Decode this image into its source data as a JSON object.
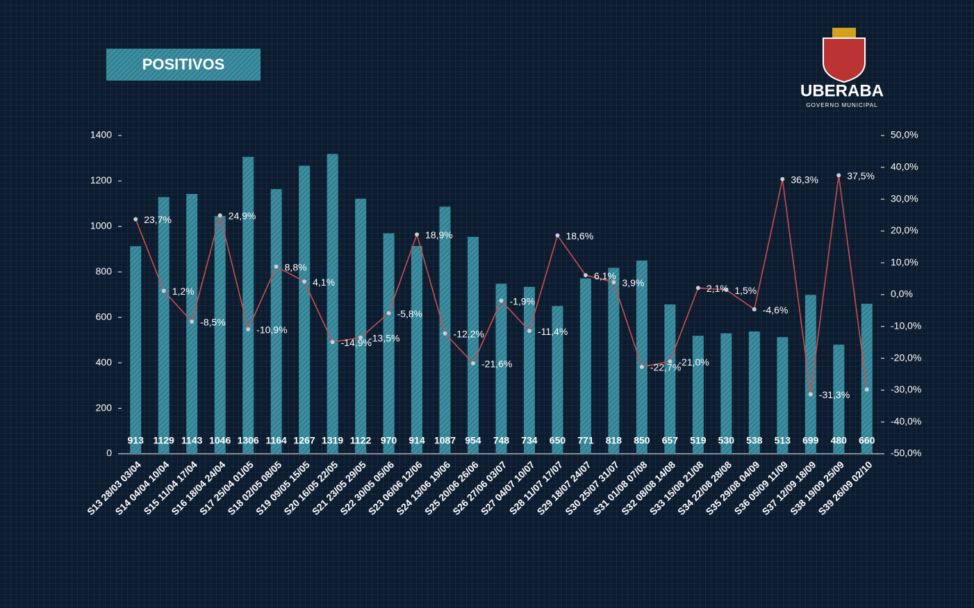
{
  "header": {
    "title": "POSITIVOS",
    "logo_name": "UBERABA",
    "logo_subtitle": "GOVERNO MUNICIPAL"
  },
  "chart_data": {
    "type": "bar_line",
    "categories": [
      "S13 28/03 03/04",
      "S14 04/04 10/04",
      "S15 11/04 17/04",
      "S16 18/04 24/04",
      "S17 25/04 01/05",
      "S18 02/05 08/05",
      "S19 09/05 15/05",
      "S20 16/05 22/05",
      "S21 23/05 29/05",
      "S22 30/05 05/06",
      "S23 06/06 12/06",
      "S24 13/06 19/06",
      "S25 20/06 26/06",
      "S26 27/06 03/07",
      "S27 04/07 10/07",
      "S28 11/07 17/07",
      "S29 18/07 24/07",
      "S30 25/07 31/07",
      "S31 01/08 07/08",
      "S32 08/08 14/08",
      "S33 15/08 21/08",
      "S34 22/08 28/08",
      "S35 29/08 04/09",
      "S36 05/09 11/09",
      "S37 12/09 18/09",
      "S38 19/09 25/09",
      "S39 26/09 02/10"
    ],
    "series": [
      {
        "type": "bar",
        "color": "#3b8ea0",
        "values": [
          913,
          1129,
          1143,
          1046,
          1306,
          1164,
          1267,
          1319,
          1122,
          970,
          914,
          1087,
          954,
          748,
          734,
          650,
          771,
          818,
          850,
          657,
          519,
          530,
          538,
          513,
          699,
          480,
          660
        ]
      },
      {
        "type": "line",
        "axis": "y2",
        "color": "#c9504f",
        "values": [
          23.7,
          1.2,
          -8.5,
          24.9,
          -10.9,
          8.8,
          4.1,
          -14.9,
          -13.5,
          -5.8,
          18.9,
          -12.2,
          -21.6,
          -1.9,
          -11.4,
          18.6,
          6.1,
          3.9,
          -22.7,
          -21.0,
          2.1,
          1.5,
          -4.6,
          36.3,
          -31.3,
          37.5,
          -29.8
        ],
        "value_labels": [
          "23,7%",
          "1,2%",
          "-8,5%",
          "24,9%",
          "-10,9%",
          "8,8%",
          "4,1%",
          "-14,9%",
          "-13,5%",
          "-5,8%",
          "18,9%",
          "-12,2%",
          "-21,6%",
          "-1,9%",
          "-11,4%",
          "18,6%",
          "6,1%",
          "3,9%",
          "-22,7%",
          "-21,0%",
          "2,1%",
          "1,5%",
          "-4,6%",
          "36,3%",
          "-31,3%",
          "37,5%",
          null
        ]
      }
    ],
    "ylim": [
      0,
      1400
    ],
    "yticks": [
      0,
      200,
      400,
      600,
      800,
      1000,
      1200,
      1400
    ],
    "y2lim": [
      -50,
      50
    ],
    "y2ticks": [
      {
        "value": -50,
        "label": "-50,0%"
      },
      {
        "value": -40,
        "label": "-40,0%"
      },
      {
        "value": -30,
        "label": "-30,0%"
      },
      {
        "value": -20,
        "label": "-20,0%"
      },
      {
        "value": -10,
        "label": "-10,0%"
      },
      {
        "value": 0,
        "label": "0,0%"
      },
      {
        "value": 10,
        "label": "10,0%"
      },
      {
        "value": 20,
        "label": "20,0%"
      },
      {
        "value": 30,
        "label": "30,0%"
      },
      {
        "value": 40,
        "label": "40,0%"
      },
      {
        "value": 50,
        "label": "50,0%"
      }
    ]
  }
}
